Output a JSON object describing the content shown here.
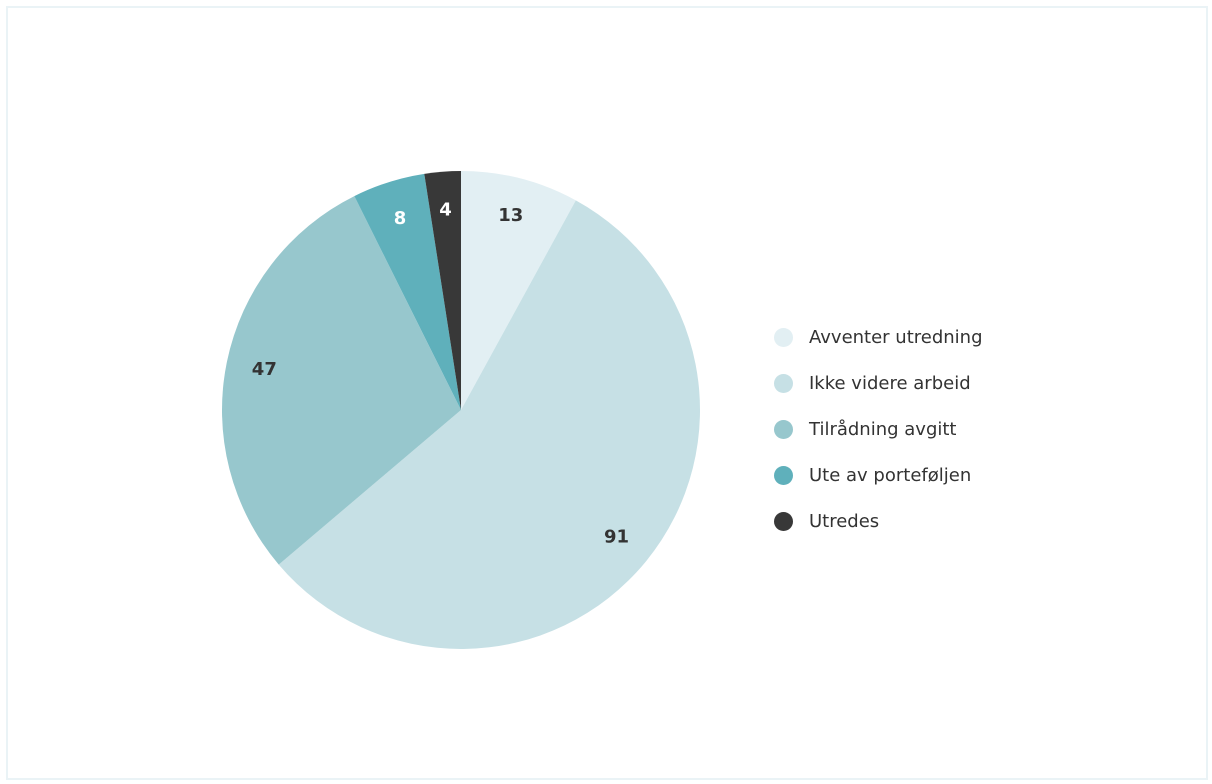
{
  "chart_data": {
    "type": "pie",
    "title": "",
    "legend_position": "right",
    "slices": [
      {
        "label": "Avventer utredning",
        "value": 13,
        "color": "#e2eff3",
        "label_color": "#333333"
      },
      {
        "label": "Ikke videre arbeid",
        "value": 91,
        "color": "#c6e0e5",
        "label_color": "#333333"
      },
      {
        "label": "Tilrådning avgitt",
        "value": 47,
        "color": "#97c7cd",
        "label_color": "#333333"
      },
      {
        "label": "Ute av porteføljen",
        "value": 8,
        "color": "#5fb0bb",
        "label_color": "#ffffff"
      },
      {
        "label": "Utredes",
        "value": 4,
        "color": "#383838",
        "label_color": "#ffffff"
      }
    ]
  }
}
